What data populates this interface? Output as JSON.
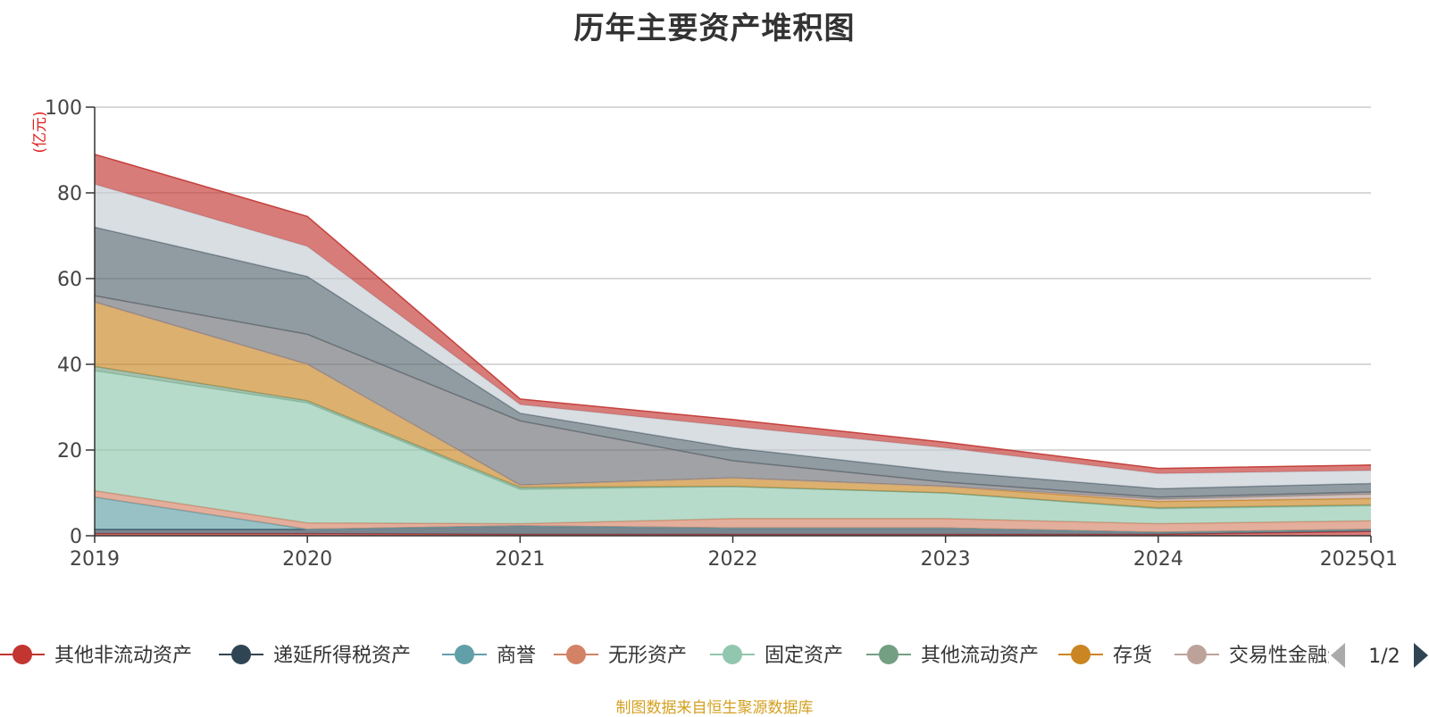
{
  "title": "历年主要资产堆积图",
  "source_note": "制图数据来自恒生聚源数据库",
  "legend_page": "1/2",
  "chart_data": {
    "type": "area",
    "stacked": true,
    "unit": "(亿元)",
    "x": [
      "2019",
      "2020",
      "2021",
      "2022",
      "2023",
      "2024",
      "2025Q1"
    ],
    "ylim": [
      0,
      100
    ],
    "yticks": [
      0,
      20,
      40,
      60,
      80,
      100
    ],
    "grid": true,
    "series": [
      {
        "name": "其他非流动资产",
        "color": "#c23531",
        "values": [
          0.5,
          0.5,
          0.3,
          0.3,
          0.3,
          0.3,
          1.0
        ]
      },
      {
        "name": "递延所得税资产",
        "color": "#2f4554",
        "values": [
          1.0,
          1.0,
          2.0,
          1.5,
          1.5,
          0.5,
          0.5
        ]
      },
      {
        "name": "商誉",
        "color": "#61a0a8",
        "values": [
          7.5,
          0.0,
          0.0,
          0.0,
          0.0,
          0.0,
          0.0
        ]
      },
      {
        "name": "无形资产",
        "color": "#d48265",
        "values": [
          1.5,
          1.5,
          0.5,
          2.2,
          2.2,
          2.0,
          2.0
        ]
      },
      {
        "name": "固定资产",
        "color": "#91c7ae",
        "values": [
          28.0,
          28.0,
          8.0,
          7.5,
          6.0,
          3.5,
          3.5
        ]
      },
      {
        "name": "其他流动资产",
        "color": "#749f83",
        "values": [
          1.0,
          0.5,
          0.5,
          0.0,
          0.0,
          0.2,
          0.2
        ]
      },
      {
        "name": "存货",
        "color": "#ca8622",
        "values": [
          15.0,
          8.5,
          0.5,
          2.0,
          1.5,
          1.5,
          1.5
        ]
      },
      {
        "name": "交易性金融资产",
        "color": "#bda29a",
        "values": [
          0.0,
          0.0,
          0.0,
          0.0,
          0.0,
          0.5,
          1.0
        ]
      },
      {
        "name": "",
        "color": "#6e7074",
        "values": [
          1.5,
          7.0,
          15.0,
          4.0,
          1.0,
          0.5,
          0.5
        ]
      },
      {
        "name": "",
        "color": "#546570",
        "values": [
          16.0,
          13.5,
          1.8,
          3.0,
          2.5,
          2.0,
          2.0
        ]
      },
      {
        "name": "",
        "color": "#c4ccd3",
        "values": [
          10.0,
          7.0,
          2.0,
          5.0,
          5.5,
          3.5,
          3.0
        ]
      },
      {
        "name": "",
        "color": "#c23531",
        "values": [
          7.0,
          7.0,
          1.3,
          1.6,
          1.3,
          1.2,
          1.3
        ]
      }
    ]
  }
}
